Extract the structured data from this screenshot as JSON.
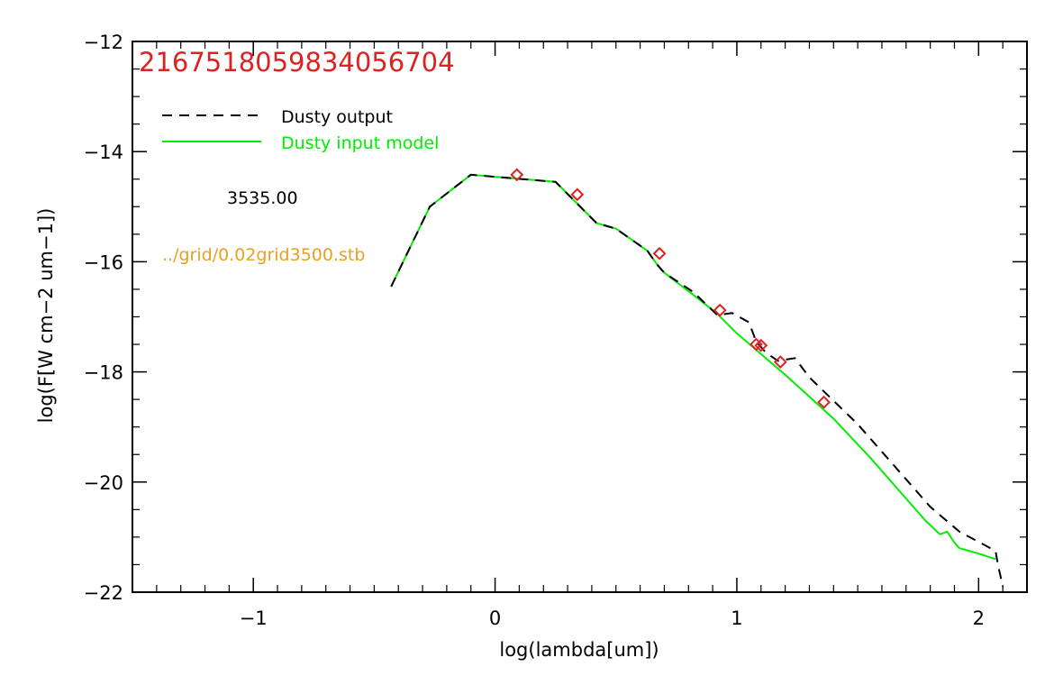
{
  "chart_data": {
    "type": "line",
    "title": "2167518059834056704",
    "xlabel": "log(lambda[um])",
    "ylabel": "log(F[W cm−2 um−1])",
    "xlim": [
      -1.5,
      2.2
    ],
    "ylim": [
      -22,
      -12
    ],
    "xticks": [
      -1,
      0,
      1,
      2
    ],
    "xtick_labels": [
      "−1",
      "0",
      "1",
      "2"
    ],
    "yticks": [
      -22,
      -20,
      -18,
      -16,
      -14,
      -12
    ],
    "ytick_labels": [
      "−22",
      "−20",
      "−18",
      "−16",
      "−14",
      "−12"
    ],
    "grid": false,
    "legend_position": "top-left",
    "series": [
      {
        "name": "Dusty output",
        "style": "dashed",
        "color": "#000000",
        "x": [
          -0.43,
          -0.27,
          -0.1,
          0.25,
          0.42,
          0.5,
          0.63,
          0.67,
          0.7,
          0.82,
          0.92,
          0.98,
          1.05,
          1.08,
          1.12,
          1.17,
          1.24,
          1.3,
          1.5,
          1.7,
          1.8,
          1.92,
          2.07,
          2.08,
          2.1
        ],
        "y": [
          -16.45,
          -15.0,
          -14.42,
          -14.55,
          -15.3,
          -15.4,
          -15.8,
          -16.05,
          -16.2,
          -16.55,
          -16.97,
          -16.93,
          -17.1,
          -17.45,
          -17.65,
          -17.8,
          -17.75,
          -18.1,
          -18.95,
          -19.95,
          -20.45,
          -20.9,
          -21.25,
          -21.5,
          -21.9
        ]
      },
      {
        "name": "Dusty input model",
        "style": "solid",
        "color": "#00ee00",
        "x": [
          -0.43,
          -0.27,
          -0.1,
          0.25,
          0.42,
          0.5,
          0.63,
          0.67,
          0.7,
          0.82,
          0.92,
          1.0,
          1.2,
          1.4,
          1.55,
          1.68,
          1.78,
          1.84,
          1.87,
          1.9,
          1.92,
          2.0,
          2.07
        ],
        "y": [
          -16.45,
          -15.0,
          -14.42,
          -14.55,
          -15.3,
          -15.4,
          -15.8,
          -16.05,
          -16.2,
          -16.6,
          -16.95,
          -17.3,
          -18.05,
          -18.85,
          -19.55,
          -20.2,
          -20.7,
          -20.95,
          -20.9,
          -21.1,
          -21.2,
          -21.3,
          -21.4
        ]
      },
      {
        "name": "",
        "type": "scatter",
        "marker": "diamond",
        "color": "#dd2222",
        "x": [
          0.09,
          0.34,
          0.68,
          0.93,
          1.08,
          1.1,
          1.18,
          1.36
        ],
        "y": [
          -14.42,
          -14.78,
          -15.85,
          -16.88,
          -17.5,
          -17.52,
          -17.82,
          -18.55
        ]
      }
    ],
    "annotations": [
      {
        "text": "3535.00",
        "color": "#000000"
      },
      {
        "text": "../grid/0.02grid3500.stb",
        "color": "#e8a020"
      }
    ]
  }
}
